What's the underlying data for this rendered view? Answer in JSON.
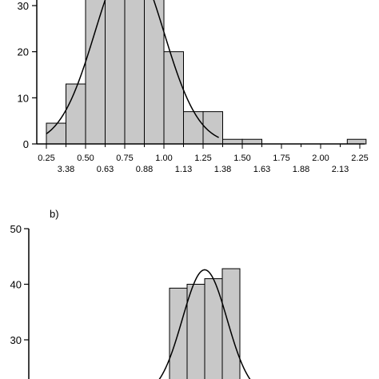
{
  "chart_data": [
    {
      "panel_label": "",
      "type": "bar",
      "histogram": true,
      "ylim": [
        0,
        30
      ],
      "yticks": [
        0,
        10,
        20,
        30
      ],
      "xlim": [
        0.25,
        2.25
      ],
      "xtick_labels_row1": [
        "0.25",
        "0.50",
        "0.75",
        "1.00",
        "1.25",
        "1.50",
        "1.75",
        "2.00",
        "2.25"
      ],
      "xtick_labels_row2": [
        "3.38",
        "0.63",
        "0.88",
        "1.13",
        "1.38",
        "1.63",
        "1.88",
        "2.13"
      ],
      "bins": [
        {
          "x0": 0.25,
          "x1": 0.375,
          "value": 4.5
        },
        {
          "x0": 0.375,
          "x1": 0.5,
          "value": 13
        },
        {
          "x0": 0.5,
          "x1": 0.625,
          "value": 33
        },
        {
          "x0": 0.625,
          "x1": 0.75,
          "value": 33
        },
        {
          "x0": 0.75,
          "x1": 0.875,
          "value": 33
        },
        {
          "x0": 0.875,
          "x1": 1.0,
          "value": 33
        },
        {
          "x0": 1.0,
          "x1": 1.125,
          "value": 20
        },
        {
          "x0": 1.125,
          "x1": 1.25,
          "value": 7
        },
        {
          "x0": 1.25,
          "x1": 1.375,
          "value": 7
        },
        {
          "x0": 1.375,
          "x1": 1.5,
          "value": 1
        },
        {
          "x0": 1.5,
          "x1": 1.625,
          "value": 1
        },
        {
          "x0": 2.17,
          "x1": 2.29,
          "value": 1
        }
      ],
      "curve": {
        "mean": 0.78,
        "sd": 0.22,
        "peak": 40
      }
    },
    {
      "panel_label": "b)",
      "type": "bar",
      "histogram": true,
      "ylim": [
        20,
        50
      ],
      "yticks": [
        30,
        40,
        50
      ],
      "xlim": [
        0,
        10
      ],
      "bins": [
        {
          "x0": 4.4,
          "x1": 4.95,
          "value": 39.3
        },
        {
          "x0": 4.95,
          "x1": 5.5,
          "value": 40
        },
        {
          "x0": 5.5,
          "x1": 6.05,
          "value": 41
        },
        {
          "x0": 6.05,
          "x1": 6.6,
          "value": 42.8
        }
      ],
      "curve": {
        "mean": 5.5,
        "sd": 0.7,
        "peak": 42.6
      }
    }
  ]
}
